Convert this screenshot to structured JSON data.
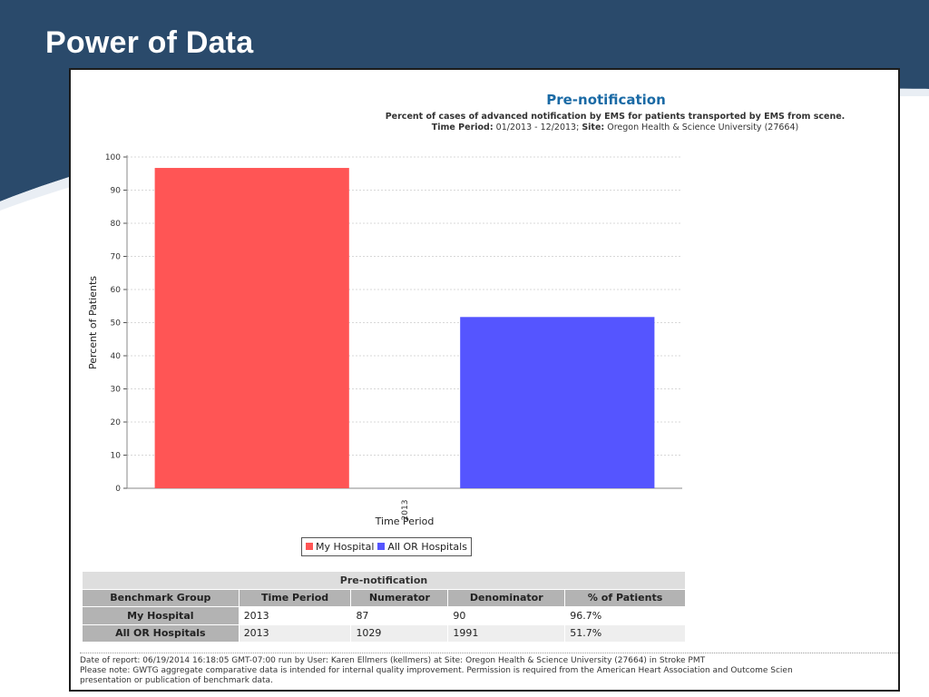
{
  "slide": {
    "title": "Power of Data",
    "colors": {
      "header_bg": "#2a4a6b",
      "panel_border": "#1c1c1c"
    }
  },
  "chart_data": {
    "type": "bar",
    "title": "Pre-notification",
    "subtitle": "Percent of cases of advanced notification by EMS for patients transported by EMS from scene.",
    "time_period_label": "Time Period:",
    "time_period_value": "01/2013 - 12/2013;",
    "site_label": "Site:",
    "site_value": "Oregon Health & Science University (27664)",
    "xlabel": "Time Period",
    "ylabel": "Percent of Patients",
    "categories": [
      "2013"
    ],
    "ylim": [
      0,
      100
    ],
    "yticks": [
      0,
      10,
      20,
      30,
      40,
      50,
      60,
      70,
      80,
      90,
      100
    ],
    "grid": true,
    "legend_position": "bottom",
    "series": [
      {
        "name": "My Hospital",
        "values": [
          96.7
        ],
        "color": "#ff5555"
      },
      {
        "name": "All OR Hospitals",
        "values": [
          51.7
        ],
        "color": "#5555ff"
      }
    ]
  },
  "table": {
    "caption": "Pre-notification",
    "headers": [
      "Benchmark Group",
      "Time Period",
      "Numerator",
      "Denominator",
      "% of Patients"
    ],
    "rows": [
      [
        "My Hospital",
        "2013",
        "87",
        "90",
        "96.7%"
      ],
      [
        "All OR Hospitals",
        "2013",
        "1029",
        "1991",
        "51.7%"
      ]
    ]
  },
  "footer": {
    "line1": "Date of report: 06/19/2014 16:18:05 GMT-07:00 run by User: Karen Ellmers (kellmers) at Site: Oregon Health & Science University (27664) in Stroke PMT",
    "line2": "Please note: GWTG aggregate comparative data is intended for internal quality improvement. Permission is required from the American Heart Association and Outcome Scien",
    "line3": "presentation or publication of benchmark data."
  }
}
